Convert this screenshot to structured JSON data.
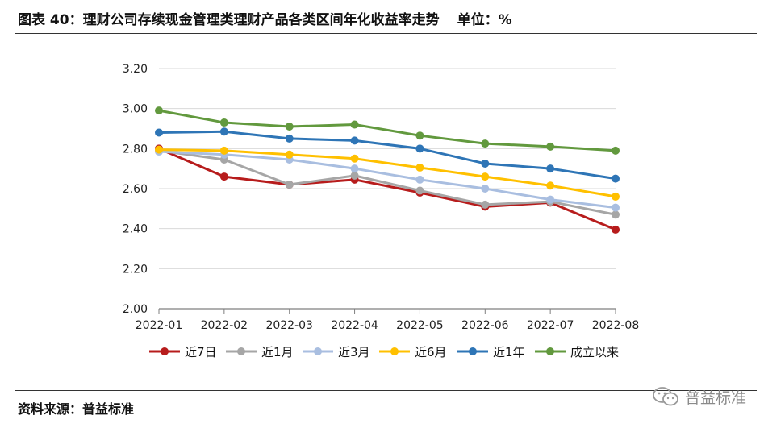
{
  "figure": {
    "title": "图表 40：理财公司存续现金管理类理财产品各类区间年化收益率走势",
    "unit": "单位：%"
  },
  "source": "资料来源：普益标准",
  "watermark": "普益标准",
  "chart_data": {
    "type": "line",
    "categories": [
      "2022-01",
      "2022-02",
      "2022-03",
      "2022-04",
      "2022-05",
      "2022-06",
      "2022-07",
      "2022-08"
    ],
    "ylim": [
      2.0,
      3.2
    ],
    "yticks": [
      "2.00",
      "2.20",
      "2.40",
      "2.60",
      "2.80",
      "3.00",
      "3.20"
    ],
    "grid": true,
    "legend_position": "bottom",
    "series": [
      {
        "name": "近7日",
        "color": "#B71C1C",
        "values": [
          2.8,
          2.66,
          2.62,
          2.645,
          2.58,
          2.51,
          2.53,
          2.395
        ]
      },
      {
        "name": "近1月",
        "color": "#A6A6A6",
        "values": [
          2.79,
          2.745,
          2.62,
          2.665,
          2.59,
          2.52,
          2.535,
          2.47
        ]
      },
      {
        "name": "近3月",
        "color": "#A9BEE0",
        "values": [
          2.785,
          2.77,
          2.745,
          2.7,
          2.645,
          2.6,
          2.545,
          2.505
        ]
      },
      {
        "name": "近6月",
        "color": "#FFC000",
        "values": [
          2.795,
          2.79,
          2.77,
          2.75,
          2.705,
          2.66,
          2.615,
          2.56
        ]
      },
      {
        "name": "近1年",
        "color": "#2E75B6",
        "values": [
          2.88,
          2.885,
          2.85,
          2.84,
          2.8,
          2.725,
          2.7,
          2.65
        ]
      },
      {
        "name": "成立以来",
        "color": "#62993E",
        "values": [
          2.99,
          2.93,
          2.91,
          2.92,
          2.865,
          2.825,
          2.81,
          2.79
        ]
      }
    ]
  }
}
